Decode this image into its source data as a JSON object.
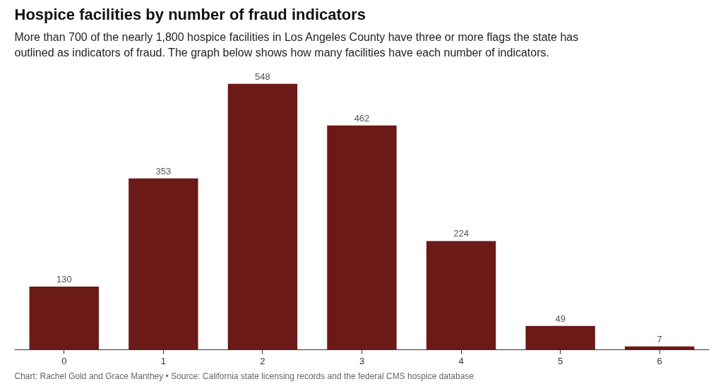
{
  "chart_data": {
    "type": "bar",
    "title": "Hospice facilities by number of fraud indicators",
    "subtitle": "More than 700 of the nearly 1,800 hospice facilities in Los Angeles County have three or more flags the state has outlined as indicators of fraud. The graph below shows how many facilities have each number of indicators.",
    "categories": [
      "0",
      "1",
      "2",
      "3",
      "4",
      "5",
      "6"
    ],
    "values": [
      130,
      353,
      548,
      462,
      224,
      49,
      7
    ],
    "color": "#6b1a17",
    "data_labels": true,
    "grid": false,
    "annotations": [
      "Chart: Rachel Gold and Grace Manthey • Source: California state licensing records and the federal CMS hospice database"
    ]
  }
}
